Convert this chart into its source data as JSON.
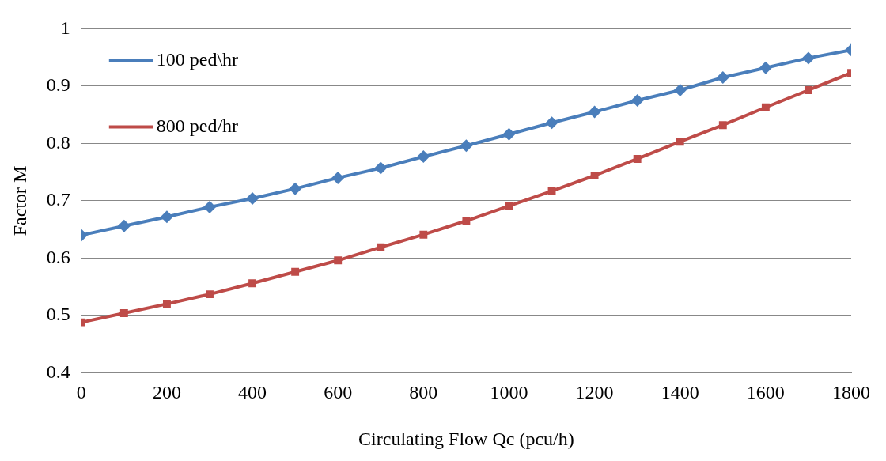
{
  "chart_data": {
    "type": "line",
    "xlabel": "Circulating Flow Qc (pcu/h)",
    "ylabel": "Factor M",
    "x": [
      0,
      100,
      200,
      300,
      400,
      500,
      600,
      700,
      800,
      900,
      1000,
      1100,
      1200,
      1300,
      1400,
      1500,
      1600,
      1700,
      1800
    ],
    "series": [
      {
        "name": "100 ped\\hr",
        "color": "#4a7ebb",
        "marker": "diamond",
        "values": [
          0.64,
          0.656,
          0.672,
          0.689,
          0.704,
          0.721,
          0.74,
          0.757,
          0.777,
          0.796,
          0.816,
          0.836,
          0.855,
          0.875,
          0.893,
          0.915,
          0.932,
          0.949,
          0.963
        ]
      },
      {
        "name": "800 ped/hr",
        "color": "#be4b48",
        "marker": "square",
        "values": [
          0.488,
          0.504,
          0.52,
          0.537,
          0.556,
          0.576,
          0.596,
          0.619,
          0.641,
          0.665,
          0.691,
          0.717,
          0.744,
          0.773,
          0.803,
          0.832,
          0.863,
          0.893,
          0.923
        ]
      }
    ],
    "xlim": [
      0,
      1800
    ],
    "xticks": [
      0,
      200,
      400,
      600,
      800,
      1000,
      1200,
      1400,
      1600,
      1800
    ],
    "ylim": [
      0.4,
      1
    ],
    "yticks": [
      0.4,
      0.5,
      0.6,
      0.7,
      0.8,
      0.9,
      1
    ],
    "grid": "y",
    "legend": "top left",
    "line_style": "solid"
  }
}
